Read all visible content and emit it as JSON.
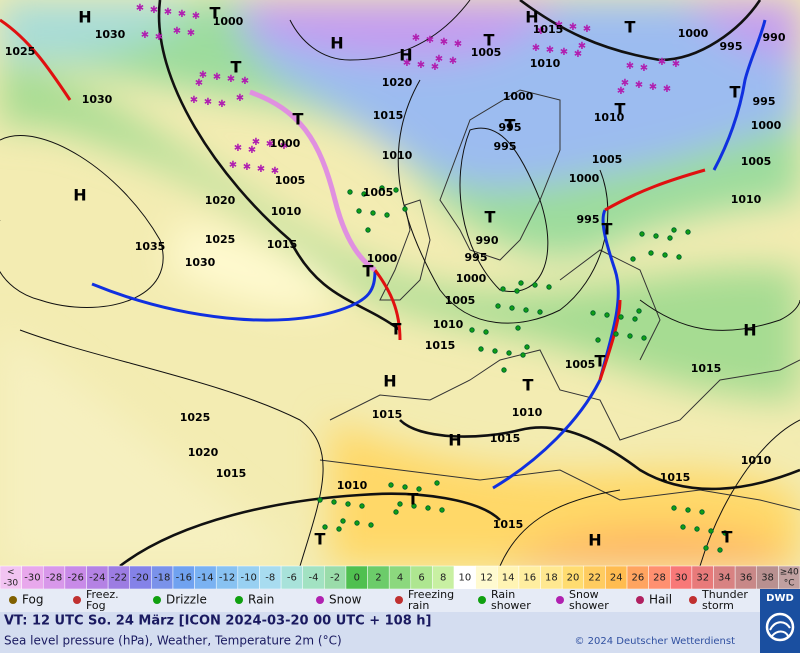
{
  "map": {
    "highs_lows": [
      "H",
      "T",
      "H",
      "T",
      "H",
      "H",
      "T",
      "T",
      "H",
      "T",
      "T",
      "T",
      "T",
      "T",
      "T",
      "T",
      "T",
      "H",
      "H",
      "H",
      "T",
      "H",
      "T",
      "T",
      "T",
      "T"
    ],
    "isobar_labels": [
      "1030",
      "1025",
      "1030",
      "1000",
      "1035",
      "1030",
      "1025",
      "1020",
      "1015",
      "1010",
      "1005",
      "1000",
      "1020",
      "1015",
      "1010",
      "1005",
      "1000",
      "1005",
      "1015",
      "1010",
      "1000",
      "995",
      "995",
      "1000",
      "1005",
      "995",
      "990",
      "995",
      "1000",
      "1005",
      "1010",
      "1015",
      "1005",
      "1010",
      "1015",
      "1015",
      "1025",
      "1020",
      "1015",
      "1010",
      "1015",
      "1015",
      "1010",
      "1015",
      "1010",
      "1005",
      "1000",
      "995",
      "995",
      "990",
      "1000",
      "1010"
    ]
  },
  "temperature_scale": {
    "below": {
      "top": "<",
      "bottom": "-30",
      "color": "#f2c4f2"
    },
    "steps": [
      -30,
      -28,
      -26,
      -24,
      -22,
      -20,
      -18,
      -16,
      -14,
      -12,
      -10,
      -8,
      -6,
      -4,
      -2,
      0,
      2,
      4,
      6,
      8,
      10,
      12,
      14,
      16,
      18,
      20,
      22,
      24,
      26,
      28,
      30,
      32,
      34,
      36,
      38
    ],
    "colors": [
      "#e8a8ec",
      "#d898ea",
      "#c88ae8",
      "#b482e4",
      "#9c7ce2",
      "#8482e8",
      "#7a92ea",
      "#70a2f0",
      "#7ab2f2",
      "#88c2f2",
      "#98d0f2",
      "#a8dcf0",
      "#a8e2da",
      "#a2e2c2",
      "#9adcaa",
      "#50c050",
      "#6ccc6a",
      "#8cd87e",
      "#aee690",
      "#c8f0a2",
      "#ffffff",
      "#fffad0",
      "#fff4b4",
      "#ffeea0",
      "#ffe890",
      "#ffdc70",
      "#ffcc60",
      "#ffbc50",
      "#ffa460",
      "#ff9070",
      "#f87878",
      "#e87a7a",
      "#d88282",
      "#c88888",
      "#b89090"
    ],
    "above": {
      "top": "≥40",
      "bottom": "°C",
      "color": "#c0a0a0"
    }
  },
  "weather_legend": [
    "Fog",
    "Freez. Fog",
    "Drizzle",
    "Rain",
    "Snow",
    "Freezing rain",
    "Rain shower",
    "Snow shower",
    "Hail",
    "Thunder storm"
  ],
  "footer": {
    "valid_time": "VT: 12 UTC So.  24 März [ICON 2024-03-20  00 UTC + 108 h]",
    "description": "Sea level pressure (hPa), Weather, Temperature 2m (°C)",
    "copyright": "© 2024 Deutscher Wetterdienst",
    "logo": "DWD"
  }
}
